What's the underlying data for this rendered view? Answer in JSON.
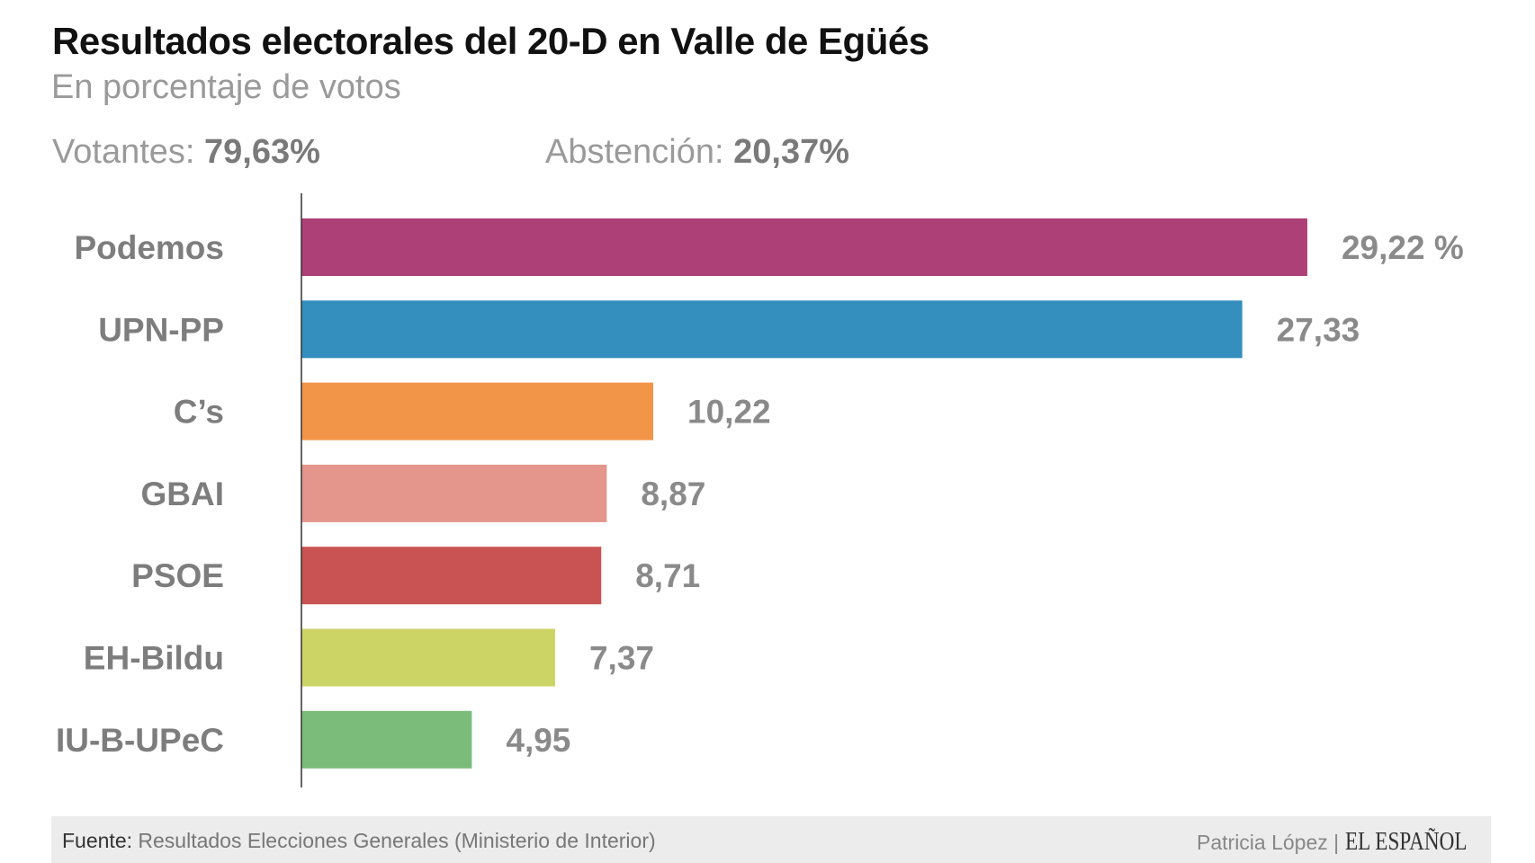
{
  "title": "Resultados electorales del 20-D en Valle de Egüés",
  "subtitle": "En porcentaje de votos",
  "stats": {
    "voters_label": "Votantes:",
    "voters_value": "79,63%",
    "abstention_label": "Abstención:",
    "abstention_value": "20,37%"
  },
  "chart_data": {
    "type": "bar",
    "orientation": "horizontal",
    "categories": [
      "Podemos",
      "UPN-PP",
      "C’s",
      "GBAI",
      "PSOE",
      "EH-Bildu",
      "IU-B-UPeC"
    ],
    "values": [
      29.22,
      27.33,
      10.22,
      8.87,
      8.71,
      7.37,
      4.95
    ],
    "value_labels": [
      "29,22 %",
      "27,33",
      "10,22",
      "8,87",
      "8,71",
      "7,37",
      "4,95"
    ],
    "colors": [
      "#ad4077",
      "#348fbf",
      "#f39548",
      "#e4968c",
      "#c95352",
      "#cdd466",
      "#7cbc7b"
    ],
    "grid": false
  },
  "footer": {
    "source_label": "Fuente:",
    "source_text": "Resultados Elecciones Generales (Ministerio de Interior)",
    "author": "Patricia López |",
    "logo": "EL ESPAÑOL"
  }
}
